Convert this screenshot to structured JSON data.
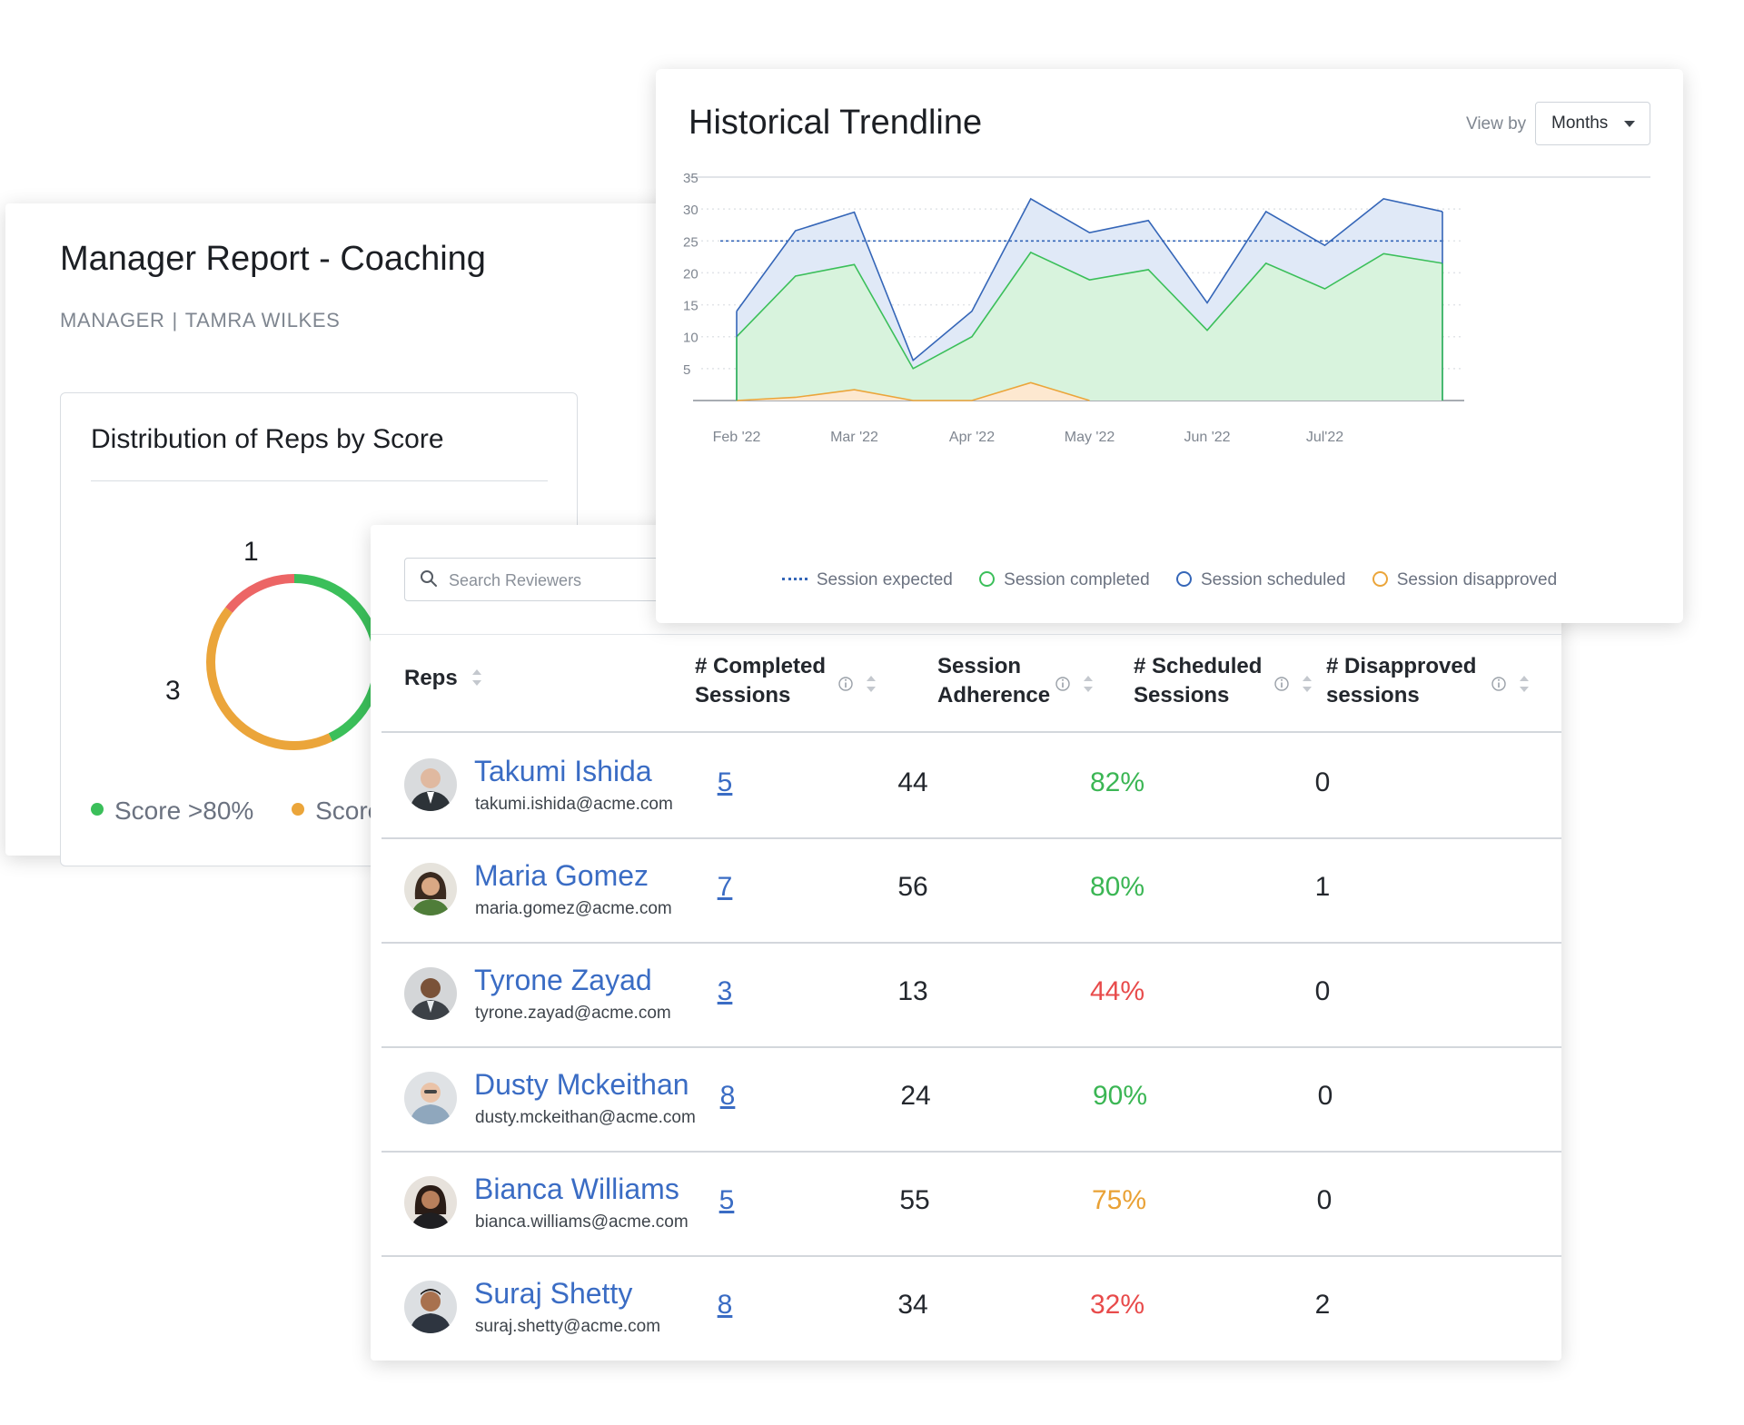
{
  "report": {
    "title": "Manager Report - Coaching",
    "role_label": "MANAGER",
    "separator": "|",
    "manager_name": "TAMRA WILKES"
  },
  "distribution": {
    "title": "Distribution of Reps by Score",
    "segments": [
      {
        "name": "Score >80%",
        "count": 3,
        "color": "#3bbf5a"
      },
      {
        "name": "Score",
        "count": 3,
        "color": "#eba53a"
      },
      {
        "name": "",
        "count": 1,
        "color": "#ec6565"
      }
    ],
    "label_top": "1",
    "label_left": "3",
    "legend": [
      {
        "label": "Score >80%",
        "color": "#3bbf5a"
      },
      {
        "label": "Score",
        "color": "#eba53a"
      }
    ]
  },
  "search": {
    "placeholder": "Search Reviewers",
    "value": ""
  },
  "table": {
    "columns": {
      "reps": "Reps",
      "completed_l1": "# Completed",
      "completed_l2": "Sessions",
      "adherence_l1": "Session",
      "adherence_l2": "Adherence",
      "scheduled_l1": "# Scheduled",
      "scheduled_l2": "Sessions",
      "disapproved_l1": "# Disapproved",
      "disapproved_l2": "sessions"
    },
    "rows": [
      {
        "name": "Takumi Ishida",
        "email": "takumi.ishida@acme.com",
        "completed": "5",
        "adherence": "44",
        "scheduled": "82%",
        "scheduled_color": "#3bb654",
        "disapproved": "0"
      },
      {
        "name": "Maria Gomez",
        "email": "maria.gomez@acme.com",
        "completed": "7",
        "adherence": "56",
        "scheduled": "80%",
        "scheduled_color": "#3bb654",
        "disapproved": "1"
      },
      {
        "name": "Tyrone Zayad",
        "email": "tyrone.zayad@acme.com",
        "completed": "3",
        "adherence": "13",
        "scheduled": "44%",
        "scheduled_color": "#e84b4b",
        "disapproved": "0"
      },
      {
        "name": "Dusty Mckeithan",
        "email": "dusty.mckeithan@acme.com",
        "completed": "8",
        "adherence": "24",
        "scheduled": "90%",
        "scheduled_color": "#3bb654",
        "disapproved": "0"
      },
      {
        "name": "Bianca Williams",
        "email": "bianca.williams@acme.com",
        "completed": "5",
        "adherence": "55",
        "scheduled": "75%",
        "scheduled_color": "#e9a135",
        "disapproved": "0"
      },
      {
        "name": "Suraj Shetty",
        "email": "suraj.shetty@acme.com",
        "completed": "8",
        "adherence": "34",
        "scheduled": "32%",
        "scheduled_color": "#e84b4b",
        "disapproved": "2"
      }
    ]
  },
  "trend": {
    "title": "Historical Trendline",
    "view_by_label": "View by",
    "view_by_value": "Months"
  },
  "chart_data": {
    "type": "area",
    "title": "Historical Trendline",
    "x_tick_labels": [
      "Feb '22",
      "Mar '22",
      "Apr '22",
      "May '22",
      "Jun '22",
      "Jul'22"
    ],
    "y_ticks": [
      5,
      10,
      15,
      20,
      25,
      30,
      35
    ],
    "ylim": [
      0,
      35
    ],
    "grid": "horizontal dotted",
    "legend_position": "bottom",
    "x": [
      0,
      0.5,
      1,
      1.5,
      2,
      2.5,
      3,
      3.5,
      4,
      4.5,
      5,
      5.5,
      6
    ],
    "series": [
      {
        "name": "Session expected",
        "style": "dotted",
        "color": "#3566b8",
        "values": [
          25,
          25,
          25,
          25,
          25,
          25,
          25,
          25,
          25,
          25,
          25,
          25,
          25
        ]
      },
      {
        "name": "Session completed",
        "color": "#3bbf5a",
        "fill": "#d8f3dd",
        "values": [
          10,
          19.5,
          21.3,
          5,
          10,
          23.2,
          18.9,
          20.5,
          11,
          21.5,
          17.5,
          23,
          21.5
        ]
      },
      {
        "name": "Session scheduled",
        "color": "#3566b8",
        "fill": "#e0e9f7",
        "values": [
          14,
          26.6,
          29.5,
          6.3,
          14,
          31.6,
          26.3,
          28.2,
          15.3,
          29.6,
          24.3,
          31.6,
          29.6
        ]
      },
      {
        "name": "Session disapproved",
        "color": "#eba53a",
        "fill": "#fde8d0",
        "values": [
          0,
          0.5,
          1.7,
          0,
          0,
          2.8,
          0,
          null,
          null,
          null,
          null,
          null,
          null
        ]
      }
    ]
  }
}
